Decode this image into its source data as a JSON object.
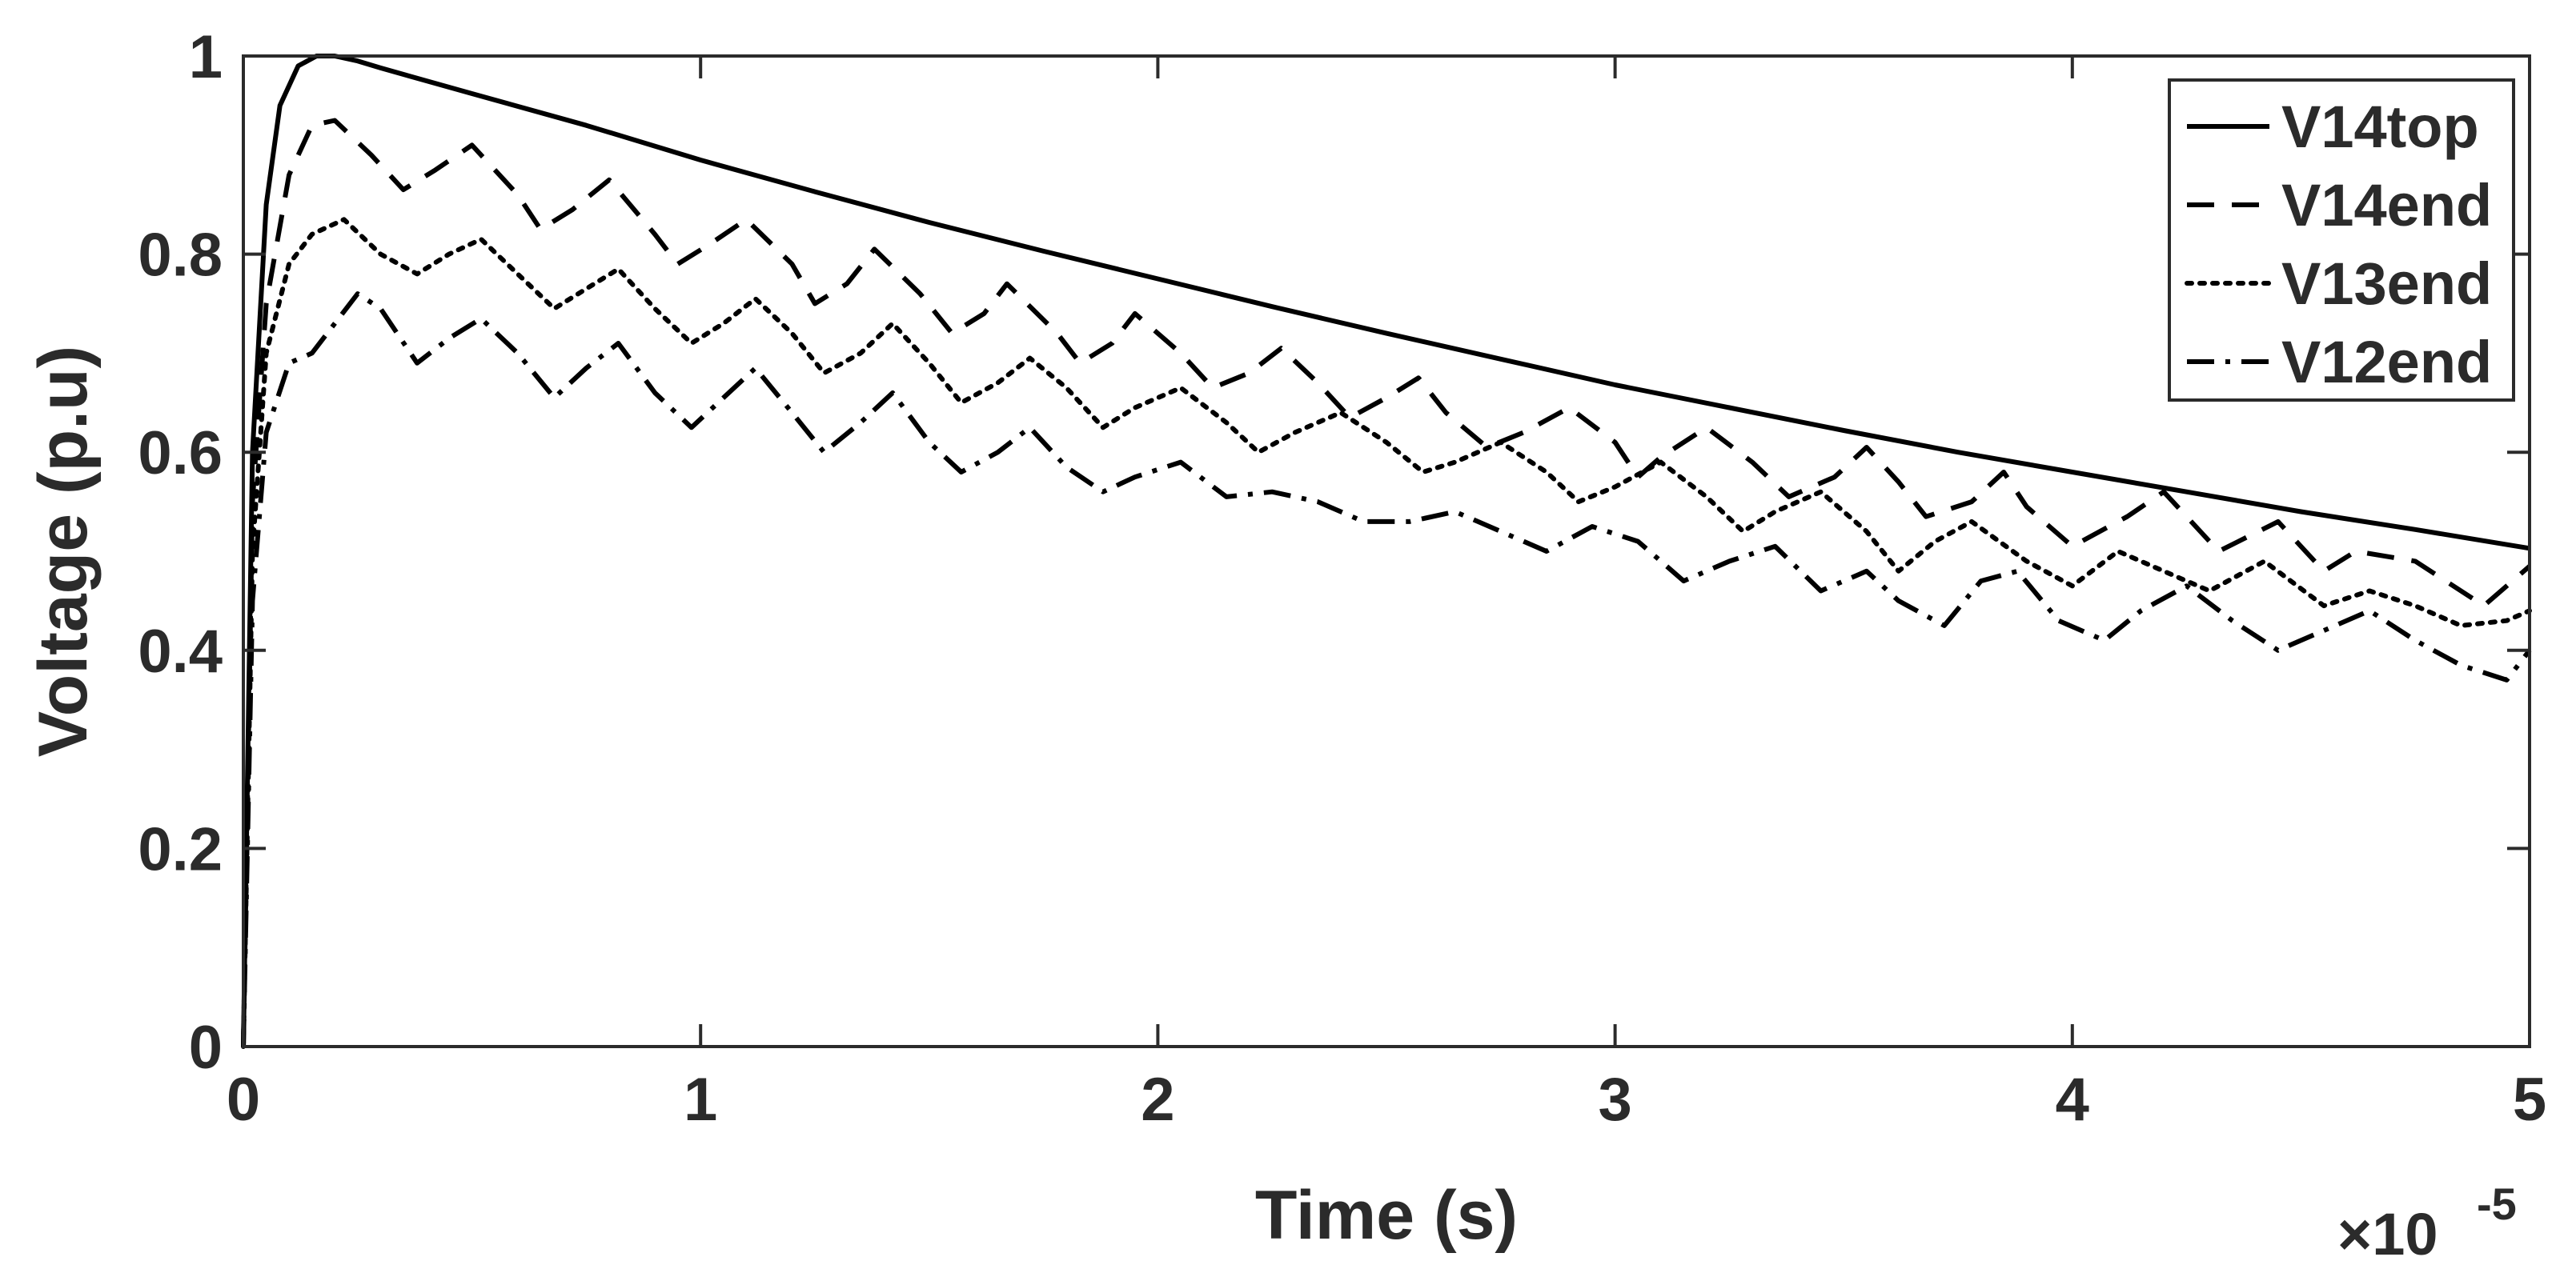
{
  "chart_data": {
    "type": "line",
    "title": "",
    "xlabel": "Time (s)",
    "ylabel": "Voltage (p.u)",
    "x_exponent_label": "×10",
    "x_exponent_power": "-5",
    "xlim": [
      0,
      5
    ],
    "ylim": [
      0,
      1
    ],
    "x_ticks": [
      0,
      1,
      2,
      3,
      4,
      5
    ],
    "y_ticks": [
      0,
      0.2,
      0.4,
      0.6,
      0.8,
      1
    ],
    "x_tick_labels": [
      "0",
      "1",
      "2",
      "3",
      "4",
      "5"
    ],
    "y_tick_labels": [
      "0",
      "0.2",
      "0.4",
      "0.6",
      "0.8",
      "1"
    ],
    "grid": false,
    "legend_position": "top-right",
    "series": [
      {
        "name": "V14top",
        "line_style": "solid",
        "color": "#000000",
        "x": [
          0,
          0.02,
          0.05,
          0.08,
          0.12,
          0.16,
          0.2,
          0.25,
          0.3,
          0.4,
          0.5,
          0.75,
          1.0,
          1.25,
          1.5,
          1.75,
          2.0,
          2.25,
          2.5,
          2.75,
          3.0,
          3.25,
          3.5,
          3.75,
          4.0,
          4.25,
          4.5,
          4.75,
          5.0
        ],
        "y": [
          0,
          0.6,
          0.85,
          0.95,
          0.99,
          1.0,
          1.0,
          0.995,
          0.988,
          0.975,
          0.962,
          0.93,
          0.895,
          0.863,
          0.832,
          0.803,
          0.775,
          0.747,
          0.72,
          0.694,
          0.668,
          0.645,
          0.622,
          0.6,
          0.58,
          0.56,
          0.54,
          0.522,
          0.503
        ]
      },
      {
        "name": "V14end",
        "line_style": "dashed",
        "color": "#000000",
        "x": [
          0,
          0.02,
          0.05,
          0.1,
          0.15,
          0.2,
          0.28,
          0.35,
          0.42,
          0.5,
          0.6,
          0.65,
          0.72,
          0.8,
          0.9,
          0.95,
          1.02,
          1.1,
          1.2,
          1.25,
          1.32,
          1.38,
          1.48,
          1.55,
          1.62,
          1.67,
          1.78,
          1.83,
          1.9,
          1.95,
          2.05,
          2.12,
          2.2,
          2.27,
          2.35,
          2.42,
          2.5,
          2.57,
          2.63,
          2.72,
          2.8,
          2.9,
          3.0,
          3.05,
          3.1,
          3.2,
          3.3,
          3.38,
          3.48,
          3.55,
          3.62,
          3.68,
          3.78,
          3.85,
          3.9,
          4.0,
          4.12,
          4.2,
          4.32,
          4.45,
          4.55,
          4.62,
          4.75,
          4.9,
          5.0
        ],
        "y": [
          0,
          0.55,
          0.75,
          0.88,
          0.93,
          0.935,
          0.9,
          0.865,
          0.885,
          0.91,
          0.86,
          0.825,
          0.845,
          0.875,
          0.82,
          0.79,
          0.81,
          0.835,
          0.79,
          0.75,
          0.77,
          0.805,
          0.76,
          0.72,
          0.74,
          0.77,
          0.72,
          0.69,
          0.71,
          0.74,
          0.7,
          0.665,
          0.68,
          0.705,
          0.67,
          0.635,
          0.655,
          0.675,
          0.64,
          0.605,
          0.62,
          0.645,
          0.61,
          0.575,
          0.595,
          0.625,
          0.59,
          0.555,
          0.575,
          0.605,
          0.57,
          0.535,
          0.55,
          0.58,
          0.545,
          0.505,
          0.535,
          0.56,
          0.5,
          0.53,
          0.48,
          0.5,
          0.49,
          0.445,
          0.485
        ]
      },
      {
        "name": "V13end",
        "line_style": "dotted",
        "color": "#000000",
        "x": [
          0,
          0.02,
          0.05,
          0.1,
          0.15,
          0.22,
          0.3,
          0.38,
          0.45,
          0.52,
          0.6,
          0.68,
          0.75,
          0.82,
          0.9,
          0.98,
          1.05,
          1.12,
          1.2,
          1.27,
          1.35,
          1.42,
          1.5,
          1.57,
          1.65,
          1.72,
          1.8,
          1.88,
          1.95,
          2.05,
          2.15,
          2.22,
          2.3,
          2.4,
          2.5,
          2.58,
          2.65,
          2.75,
          2.85,
          2.92,
          3.0,
          3.1,
          3.2,
          3.28,
          3.35,
          3.45,
          3.55,
          3.62,
          3.7,
          3.78,
          3.9,
          4.0,
          4.1,
          4.2,
          4.3,
          4.42,
          4.55,
          4.65,
          4.75,
          4.85,
          4.95,
          5.0
        ],
        "y": [
          0,
          0.5,
          0.7,
          0.79,
          0.82,
          0.835,
          0.8,
          0.78,
          0.8,
          0.815,
          0.78,
          0.745,
          0.765,
          0.785,
          0.745,
          0.71,
          0.73,
          0.755,
          0.72,
          0.68,
          0.7,
          0.73,
          0.69,
          0.65,
          0.67,
          0.695,
          0.665,
          0.625,
          0.645,
          0.665,
          0.63,
          0.6,
          0.62,
          0.64,
          0.61,
          0.58,
          0.59,
          0.61,
          0.58,
          0.55,
          0.565,
          0.59,
          0.555,
          0.52,
          0.54,
          0.56,
          0.52,
          0.48,
          0.51,
          0.53,
          0.49,
          0.465,
          0.5,
          0.48,
          0.46,
          0.49,
          0.445,
          0.46,
          0.445,
          0.425,
          0.43,
          0.44
        ]
      },
      {
        "name": "V12end",
        "line_style": "dashdot",
        "color": "#000000",
        "x": [
          0,
          0.02,
          0.05,
          0.1,
          0.15,
          0.2,
          0.25,
          0.3,
          0.38,
          0.45,
          0.52,
          0.6,
          0.68,
          0.75,
          0.82,
          0.9,
          0.98,
          1.05,
          1.12,
          1.2,
          1.27,
          1.35,
          1.42,
          1.5,
          1.57,
          1.65,
          1.72,
          1.8,
          1.88,
          1.95,
          2.05,
          2.15,
          2.25,
          2.35,
          2.45,
          2.55,
          2.65,
          2.75,
          2.85,
          2.95,
          3.05,
          3.15,
          3.25,
          3.35,
          3.45,
          3.55,
          3.62,
          3.72,
          3.8,
          3.88,
          3.97,
          4.07,
          4.15,
          4.25,
          4.35,
          4.45,
          4.55,
          4.65,
          4.75,
          4.85,
          4.95,
          5.0
        ],
        "y": [
          0,
          0.45,
          0.62,
          0.69,
          0.7,
          0.73,
          0.76,
          0.745,
          0.69,
          0.715,
          0.735,
          0.7,
          0.655,
          0.685,
          0.71,
          0.66,
          0.625,
          0.655,
          0.685,
          0.64,
          0.6,
          0.63,
          0.66,
          0.61,
          0.58,
          0.6,
          0.625,
          0.585,
          0.56,
          0.575,
          0.59,
          0.555,
          0.56,
          0.55,
          0.53,
          0.53,
          0.54,
          0.52,
          0.5,
          0.525,
          0.51,
          0.47,
          0.49,
          0.505,
          0.46,
          0.48,
          0.45,
          0.425,
          0.47,
          0.48,
          0.43,
          0.41,
          0.44,
          0.465,
          0.43,
          0.4,
          0.42,
          0.44,
          0.41,
          0.385,
          0.37,
          0.4
        ]
      }
    ]
  }
}
